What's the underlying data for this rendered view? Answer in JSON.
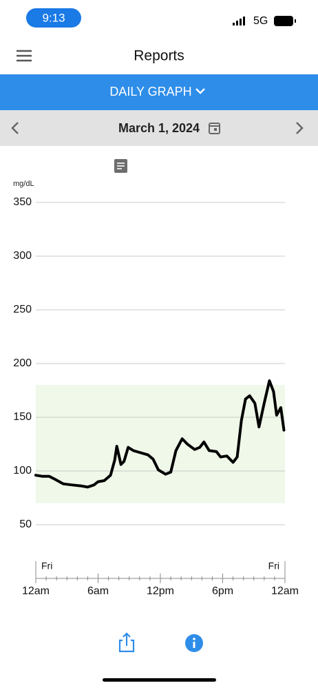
{
  "status_bar": {
    "time": "9:13",
    "network": "5G"
  },
  "header": {
    "title": "Reports"
  },
  "view_selector": {
    "label": "DAILY GRAPH"
  },
  "date_nav": {
    "date": "March 1, 2024"
  },
  "chart_data": {
    "type": "line",
    "y_unit": "mg/dL",
    "color": "#000000",
    "target_range": [
      70,
      180
    ],
    "target_color": "#eff8e9",
    "x": [
      0,
      0.66,
      1.3,
      1.9,
      2.65,
      3.5,
      4.4,
      5.0,
      5.6,
      6.0,
      6.6,
      7.2,
      7.6,
      7.8,
      8.2,
      8.5,
      8.9,
      9.4,
      10.1,
      10.8,
      11.3,
      11.8,
      12.5,
      13.0,
      13.5,
      14.1,
      14.6,
      15.3,
      15.8,
      16.2,
      16.7,
      17.4,
      17.8,
      18.4,
      19.0,
      19.4,
      19.8,
      20.2,
      20.6,
      21.1,
      21.5,
      22.0,
      22.5,
      22.9,
      23.2,
      23.6,
      23.9
    ],
    "values": [
      96,
      95,
      95,
      92,
      88,
      87,
      86,
      85,
      87,
      90,
      91,
      96,
      110,
      123,
      106,
      109,
      122,
      119,
      117,
      115,
      111,
      101,
      97,
      99,
      119,
      130,
      125,
      120,
      122,
      127,
      119,
      118,
      113,
      114,
      108,
      113,
      147,
      167,
      170,
      163,
      141,
      163,
      184,
      174,
      152,
      159,
      138
    ],
    "xlim": [
      0,
      24
    ],
    "xticks": [
      {
        "value": 0,
        "label": "12am"
      },
      {
        "value": 6,
        "label": "6am"
      },
      {
        "value": 12,
        "label": "12pm"
      },
      {
        "value": 18,
        "label": "6pm"
      },
      {
        "value": 24,
        "label": "12am"
      }
    ],
    "ylim": [
      50,
      350
    ],
    "yticks": [
      50,
      100,
      150,
      200,
      250,
      300,
      350
    ],
    "grid": true,
    "annotations": [
      {
        "text": "Fri",
        "x": 0
      },
      {
        "text": "Fri",
        "x": 24
      }
    ]
  }
}
